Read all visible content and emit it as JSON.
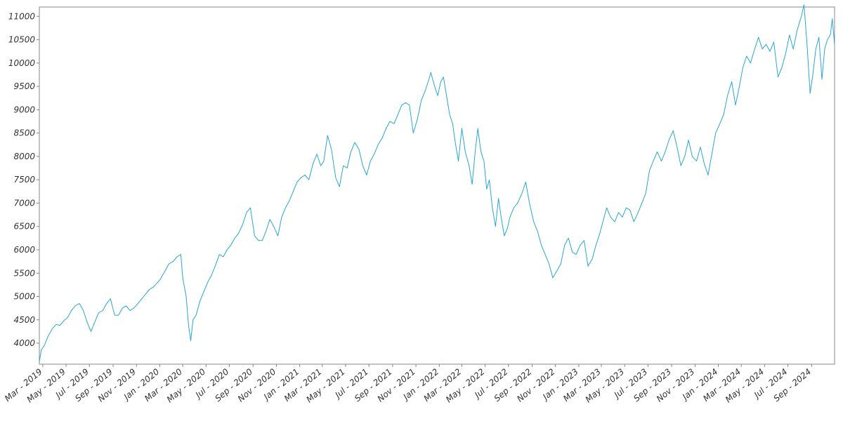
{
  "chart_data": {
    "type": "line",
    "title": "",
    "xlabel": "",
    "ylabel": "",
    "x_range": [
      "2019-02-20",
      "2024-10-31"
    ],
    "ylim": [
      3550,
      11200
    ],
    "y_ticks": [
      4000,
      4500,
      5000,
      5500,
      6000,
      6500,
      7000,
      7500,
      8000,
      8500,
      9000,
      9500,
      10000,
      10500,
      11000
    ],
    "x_ticks": [
      {
        "label": "Mar - 2019",
        "date": "2019-03-01"
      },
      {
        "label": "May - 2019",
        "date": "2019-05-01"
      },
      {
        "label": "Jul - 2019",
        "date": "2019-07-01"
      },
      {
        "label": "Sep - 2019",
        "date": "2019-09-01"
      },
      {
        "label": "Nov - 2019",
        "date": "2019-11-01"
      },
      {
        "label": "Jan - 2020",
        "date": "2020-01-01"
      },
      {
        "label": "Mar - 2020",
        "date": "2020-03-01"
      },
      {
        "label": "May - 2020",
        "date": "2020-05-01"
      },
      {
        "label": "Jul - 2020",
        "date": "2020-07-01"
      },
      {
        "label": "Sep - 2020",
        "date": "2020-09-01"
      },
      {
        "label": "Nov - 2020",
        "date": "2020-11-01"
      },
      {
        "label": "Jan - 2021",
        "date": "2021-01-01"
      },
      {
        "label": "Mar - 2021",
        "date": "2021-03-01"
      },
      {
        "label": "May - 2021",
        "date": "2021-05-01"
      },
      {
        "label": "Jul - 2021",
        "date": "2021-07-01"
      },
      {
        "label": "Sep - 2021",
        "date": "2021-09-01"
      },
      {
        "label": "Nov - 2021",
        "date": "2021-11-01"
      },
      {
        "label": "Jan - 2022",
        "date": "2022-01-01"
      },
      {
        "label": "Mar - 2022",
        "date": "2022-03-01"
      },
      {
        "label": "May - 2022",
        "date": "2022-05-01"
      },
      {
        "label": "Jul - 2022",
        "date": "2022-07-01"
      },
      {
        "label": "Sep - 2022",
        "date": "2022-09-01"
      },
      {
        "label": "Nov - 2022",
        "date": "2022-11-01"
      },
      {
        "label": "Jan - 2023",
        "date": "2023-01-01"
      },
      {
        "label": "Mar - 2023",
        "date": "2023-03-01"
      },
      {
        "label": "May - 2023",
        "date": "2023-05-01"
      },
      {
        "label": "Jul - 2023",
        "date": "2023-07-01"
      },
      {
        "label": "Sep - 2023",
        "date": "2023-09-01"
      },
      {
        "label": "Nov - 2023",
        "date": "2023-11-01"
      },
      {
        "label": "Jan - 2024",
        "date": "2024-01-01"
      },
      {
        "label": "Mar - 2024",
        "date": "2024-03-01"
      },
      {
        "label": "May - 2024",
        "date": "2024-05-01"
      },
      {
        "label": "Jul - 2024",
        "date": "2024-07-01"
      },
      {
        "label": "Sep - 2024",
        "date": "2024-09-01"
      }
    ],
    "grid": false,
    "legend": "none",
    "colors": {
      "line": "#29a8dc",
      "axis": "#888888",
      "text": "#333333"
    },
    "series": [
      {
        "name": "",
        "points": [
          [
            "2019-02-20",
            3600
          ],
          [
            "2019-02-25",
            3850
          ],
          [
            "2019-03-05",
            3950
          ],
          [
            "2019-03-15",
            4150
          ],
          [
            "2019-03-25",
            4300
          ],
          [
            "2019-04-05",
            4400
          ],
          [
            "2019-04-15",
            4380
          ],
          [
            "2019-04-25",
            4480
          ],
          [
            "2019-05-05",
            4550
          ],
          [
            "2019-05-15",
            4700
          ],
          [
            "2019-05-25",
            4800
          ],
          [
            "2019-06-05",
            4850
          ],
          [
            "2019-06-15",
            4700
          ],
          [
            "2019-06-25",
            4450
          ],
          [
            "2019-07-05",
            4250
          ],
          [
            "2019-07-15",
            4450
          ],
          [
            "2019-07-25",
            4650
          ],
          [
            "2019-08-05",
            4700
          ],
          [
            "2019-08-15",
            4850
          ],
          [
            "2019-08-25",
            4950
          ],
          [
            "2019-09-05",
            4600
          ],
          [
            "2019-09-15",
            4600
          ],
          [
            "2019-09-25",
            4750
          ],
          [
            "2019-10-05",
            4800
          ],
          [
            "2019-10-15",
            4700
          ],
          [
            "2019-10-25",
            4750
          ],
          [
            "2019-11-05",
            4850
          ],
          [
            "2019-11-15",
            4950
          ],
          [
            "2019-11-25",
            5050
          ],
          [
            "2019-12-05",
            5150
          ],
          [
            "2019-12-15",
            5200
          ],
          [
            "2020-01-01",
            5350
          ],
          [
            "2020-01-15",
            5550
          ],
          [
            "2020-01-25",
            5700
          ],
          [
            "2020-02-05",
            5750
          ],
          [
            "2020-02-15",
            5850
          ],
          [
            "2020-02-25",
            5900
          ],
          [
            "2020-03-01",
            5400
          ],
          [
            "2020-03-10",
            5000
          ],
          [
            "2020-03-16",
            4400
          ],
          [
            "2020-03-22",
            4050
          ],
          [
            "2020-03-28",
            4500
          ],
          [
            "2020-04-05",
            4600
          ],
          [
            "2020-04-15",
            4900
          ],
          [
            "2020-04-25",
            5100
          ],
          [
            "2020-05-05",
            5300
          ],
          [
            "2020-05-15",
            5450
          ],
          [
            "2020-05-25",
            5650
          ],
          [
            "2020-06-05",
            5900
          ],
          [
            "2020-06-15",
            5850
          ],
          [
            "2020-06-25",
            6000
          ],
          [
            "2020-07-05",
            6100
          ],
          [
            "2020-07-15",
            6250
          ],
          [
            "2020-07-25",
            6350
          ],
          [
            "2020-08-05",
            6550
          ],
          [
            "2020-08-15",
            6800
          ],
          [
            "2020-08-25",
            6900
          ],
          [
            "2020-09-05",
            6300
          ],
          [
            "2020-09-15",
            6200
          ],
          [
            "2020-09-25",
            6200
          ],
          [
            "2020-10-05",
            6400
          ],
          [
            "2020-10-15",
            6650
          ],
          [
            "2020-10-25",
            6500
          ],
          [
            "2020-11-05",
            6300
          ],
          [
            "2020-11-15",
            6700
          ],
          [
            "2020-11-25",
            6900
          ],
          [
            "2020-12-05",
            7050
          ],
          [
            "2020-12-15",
            7250
          ],
          [
            "2020-12-25",
            7450
          ],
          [
            "2021-01-05",
            7550
          ],
          [
            "2021-01-15",
            7600
          ],
          [
            "2021-01-25",
            7500
          ],
          [
            "2021-02-05",
            7850
          ],
          [
            "2021-02-15",
            8050
          ],
          [
            "2021-02-25",
            7800
          ],
          [
            "2021-03-05",
            7900
          ],
          [
            "2021-03-15",
            8450
          ],
          [
            "2021-03-25",
            8150
          ],
          [
            "2021-04-05",
            7550
          ],
          [
            "2021-04-15",
            7350
          ],
          [
            "2021-04-25",
            7800
          ],
          [
            "2021-05-05",
            7750
          ],
          [
            "2021-05-15",
            8100
          ],
          [
            "2021-05-25",
            8300
          ],
          [
            "2021-06-05",
            8150
          ],
          [
            "2021-06-15",
            7800
          ],
          [
            "2021-06-25",
            7600
          ],
          [
            "2021-07-05",
            7900
          ],
          [
            "2021-07-15",
            8050
          ],
          [
            "2021-07-25",
            8250
          ],
          [
            "2021-08-05",
            8400
          ],
          [
            "2021-08-15",
            8600
          ],
          [
            "2021-08-25",
            8750
          ],
          [
            "2021-09-05",
            8700
          ],
          [
            "2021-09-15",
            8900
          ],
          [
            "2021-09-25",
            9100
          ],
          [
            "2021-10-05",
            9150
          ],
          [
            "2021-10-15",
            9100
          ],
          [
            "2021-10-25",
            8500
          ],
          [
            "2021-11-05",
            8800
          ],
          [
            "2021-11-15",
            9200
          ],
          [
            "2021-11-25",
            9400
          ],
          [
            "2021-12-05",
            9650
          ],
          [
            "2021-12-10",
            9800
          ],
          [
            "2021-12-20",
            9500
          ],
          [
            "2021-12-28",
            9300
          ],
          [
            "2022-01-05",
            9600
          ],
          [
            "2022-01-12",
            9700
          ],
          [
            "2022-01-20",
            9300
          ],
          [
            "2022-01-28",
            8900
          ],
          [
            "2022-02-05",
            8700
          ],
          [
            "2022-02-12",
            8300
          ],
          [
            "2022-02-20",
            7900
          ],
          [
            "2022-03-01",
            8600
          ],
          [
            "2022-03-10",
            8100
          ],
          [
            "2022-03-20",
            7800
          ],
          [
            "2022-03-28",
            7400
          ],
          [
            "2022-04-05",
            8100
          ],
          [
            "2022-04-12",
            8600
          ],
          [
            "2022-04-20",
            8100
          ],
          [
            "2022-04-28",
            7900
          ],
          [
            "2022-05-05",
            7300
          ],
          [
            "2022-05-12",
            7500
          ],
          [
            "2022-05-20",
            6900
          ],
          [
            "2022-05-28",
            6500
          ],
          [
            "2022-06-05",
            7100
          ],
          [
            "2022-06-12",
            6700
          ],
          [
            "2022-06-20",
            6300
          ],
          [
            "2022-06-28",
            6450
          ],
          [
            "2022-07-05",
            6700
          ],
          [
            "2022-07-15",
            6900
          ],
          [
            "2022-07-25",
            7000
          ],
          [
            "2022-08-05",
            7200
          ],
          [
            "2022-08-15",
            7450
          ],
          [
            "2022-08-25",
            7000
          ],
          [
            "2022-09-05",
            6600
          ],
          [
            "2022-09-15",
            6400
          ],
          [
            "2022-09-25",
            6100
          ],
          [
            "2022-10-05",
            5900
          ],
          [
            "2022-10-15",
            5700
          ],
          [
            "2022-10-25",
            5400
          ],
          [
            "2022-11-05",
            5550
          ],
          [
            "2022-11-15",
            5700
          ],
          [
            "2022-11-25",
            6100
          ],
          [
            "2022-12-05",
            6250
          ],
          [
            "2022-12-15",
            5950
          ],
          [
            "2022-12-25",
            5900
          ],
          [
            "2023-01-05",
            6100
          ],
          [
            "2023-01-15",
            6200
          ],
          [
            "2023-01-25",
            5650
          ],
          [
            "2023-02-05",
            5800
          ],
          [
            "2023-02-15",
            6100
          ],
          [
            "2023-02-25",
            6350
          ],
          [
            "2023-03-05",
            6600
          ],
          [
            "2023-03-15",
            6900
          ],
          [
            "2023-03-25",
            6700
          ],
          [
            "2023-04-05",
            6600
          ],
          [
            "2023-04-15",
            6800
          ],
          [
            "2023-04-25",
            6700
          ],
          [
            "2023-05-05",
            6900
          ],
          [
            "2023-05-15",
            6850
          ],
          [
            "2023-05-25",
            6600
          ],
          [
            "2023-06-05",
            6800
          ],
          [
            "2023-06-15",
            7000
          ],
          [
            "2023-06-25",
            7200
          ],
          [
            "2023-07-05",
            7700
          ],
          [
            "2023-07-15",
            7900
          ],
          [
            "2023-07-25",
            8100
          ],
          [
            "2023-08-05",
            7900
          ],
          [
            "2023-08-15",
            8100
          ],
          [
            "2023-08-25",
            8350
          ],
          [
            "2023-09-05",
            8550
          ],
          [
            "2023-09-15",
            8200
          ],
          [
            "2023-09-25",
            7800
          ],
          [
            "2023-10-05",
            8000
          ],
          [
            "2023-10-15",
            8350
          ],
          [
            "2023-10-25",
            8000
          ],
          [
            "2023-11-05",
            7900
          ],
          [
            "2023-11-15",
            8200
          ],
          [
            "2023-11-25",
            7850
          ],
          [
            "2023-12-05",
            7600
          ],
          [
            "2023-12-15",
            8050
          ],
          [
            "2023-12-25",
            8500
          ],
          [
            "2024-01-05",
            8700
          ],
          [
            "2024-01-15",
            8900
          ],
          [
            "2024-01-25",
            9300
          ],
          [
            "2024-02-05",
            9600
          ],
          [
            "2024-02-15",
            9100
          ],
          [
            "2024-02-25",
            9500
          ],
          [
            "2024-03-05",
            9900
          ],
          [
            "2024-03-15",
            10150
          ],
          [
            "2024-03-25",
            10000
          ],
          [
            "2024-04-05",
            10300
          ],
          [
            "2024-04-15",
            10550
          ],
          [
            "2024-04-25",
            10300
          ],
          [
            "2024-05-05",
            10400
          ],
          [
            "2024-05-15",
            10250
          ],
          [
            "2024-05-25",
            10450
          ],
          [
            "2024-06-05",
            9700
          ],
          [
            "2024-06-15",
            9900
          ],
          [
            "2024-06-25",
            10200
          ],
          [
            "2024-07-05",
            10600
          ],
          [
            "2024-07-15",
            10300
          ],
          [
            "2024-07-25",
            10700
          ],
          [
            "2024-08-05",
            11000
          ],
          [
            "2024-08-12",
            11250
          ],
          [
            "2024-08-20",
            10400
          ],
          [
            "2024-08-28",
            9350
          ],
          [
            "2024-09-05",
            9800
          ],
          [
            "2024-09-12",
            10300
          ],
          [
            "2024-09-20",
            10550
          ],
          [
            "2024-09-28",
            9650
          ],
          [
            "2024-10-05",
            10300
          ],
          [
            "2024-10-12",
            10500
          ],
          [
            "2024-10-20",
            10600
          ],
          [
            "2024-10-25",
            10950
          ],
          [
            "2024-10-31",
            10400
          ]
        ]
      }
    ]
  }
}
